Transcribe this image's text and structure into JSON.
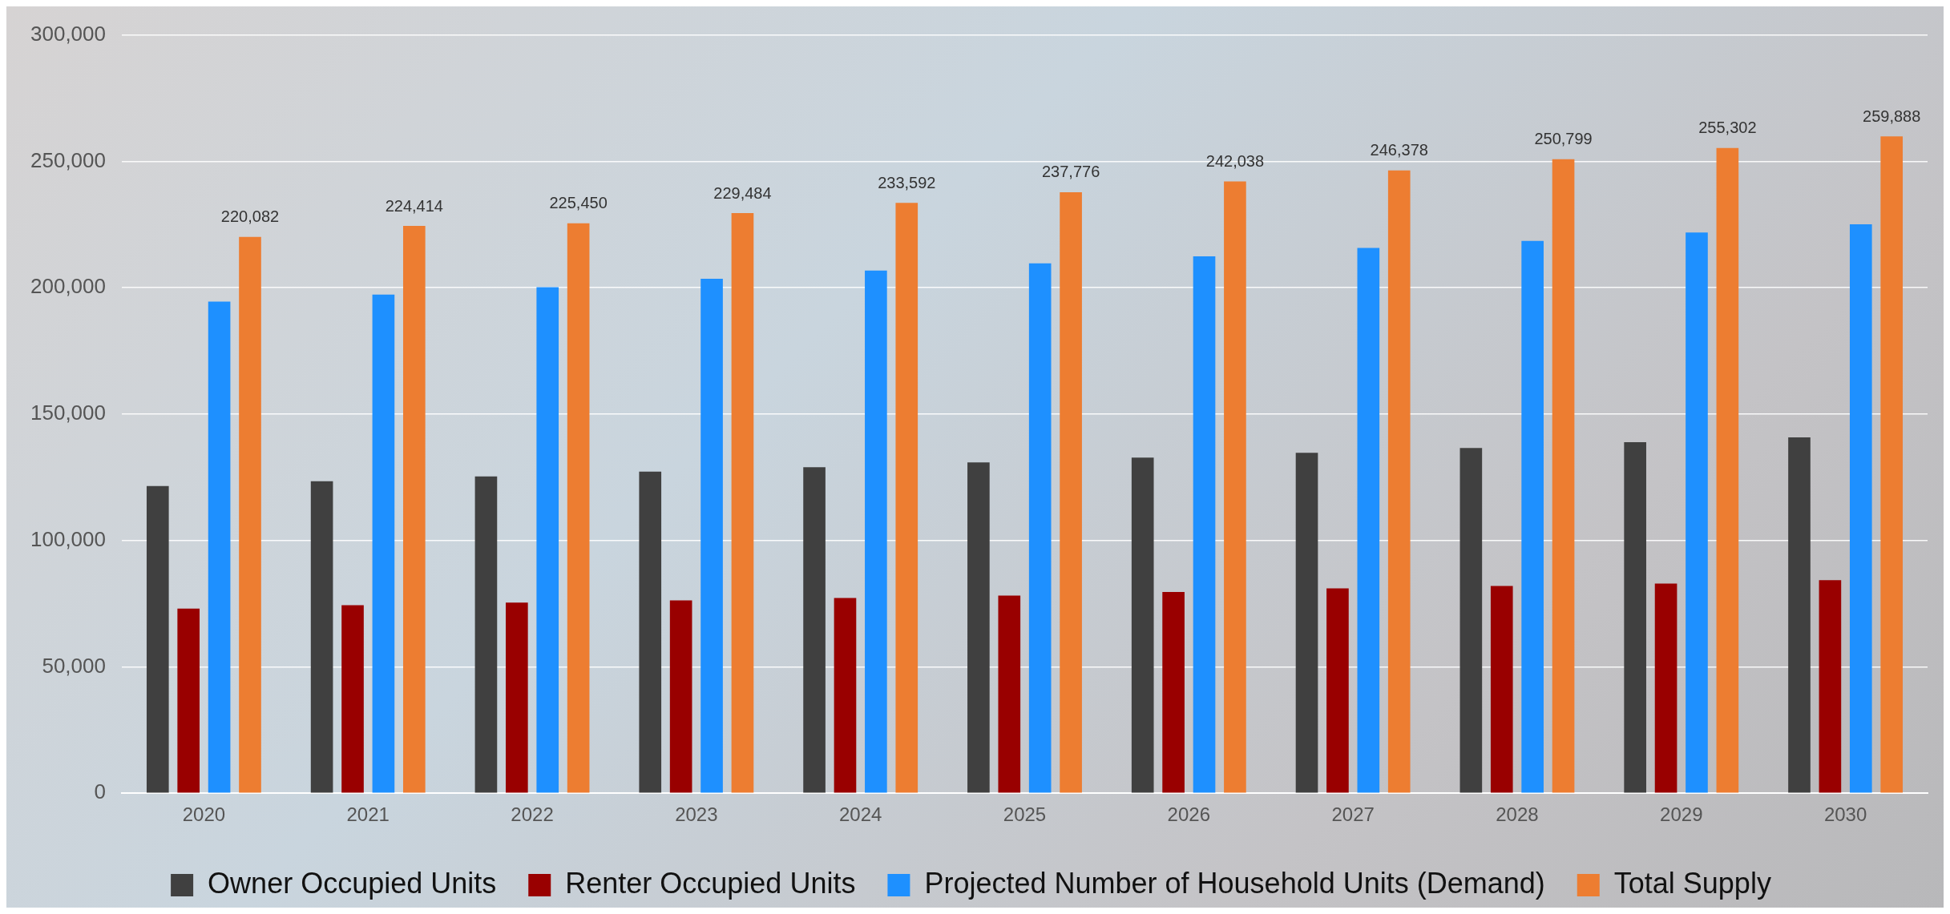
{
  "chart_data": {
    "type": "bar",
    "categories": [
      "2020",
      "2021",
      "2022",
      "2023",
      "2024",
      "2025",
      "2026",
      "2027",
      "2028",
      "2029",
      "2030"
    ],
    "series": [
      {
        "name": "Owner Occupied Units",
        "color": "#404040",
        "values": [
          121500,
          123400,
          125300,
          127200,
          129000,
          130900,
          132800,
          134700,
          136600,
          138900,
          140800
        ]
      },
      {
        "name": "Renter Occupied Units",
        "color": "#990000",
        "values": [
          73000,
          74400,
          75400,
          76300,
          77200,
          78200,
          79600,
          81000,
          82000,
          82900,
          84300
        ]
      },
      {
        "name": "Projected Number of Household Units (Demand)",
        "color": "#1e90ff",
        "values": [
          194500,
          197300,
          200200,
          203500,
          206800,
          209600,
          212400,
          215700,
          218500,
          221800,
          225100
        ]
      },
      {
        "name": "Total Supply",
        "color": "#ed7d31",
        "values": [
          220082,
          224414,
          225450,
          229484,
          233592,
          237776,
          242038,
          246378,
          250799,
          255302,
          259888
        ],
        "value_labels": [
          "220,082",
          "224,414",
          "225,450",
          "229,484",
          "233,592",
          "237,776",
          "242,038",
          "246,378",
          "250,799",
          "255,302",
          "259,888"
        ]
      }
    ],
    "ylim": [
      0,
      300000
    ],
    "yticks": [
      {
        "value": 0,
        "label": "0"
      },
      {
        "value": 50000,
        "label": "50,000"
      },
      {
        "value": 100000,
        "label": "100,000"
      },
      {
        "value": 150000,
        "label": "150,000"
      },
      {
        "value": 200000,
        "label": "200,000"
      },
      {
        "value": 250000,
        "label": "250,000"
      },
      {
        "value": 300000,
        "label": "300,000"
      }
    ],
    "grid": "y",
    "legend": "bottom"
  }
}
